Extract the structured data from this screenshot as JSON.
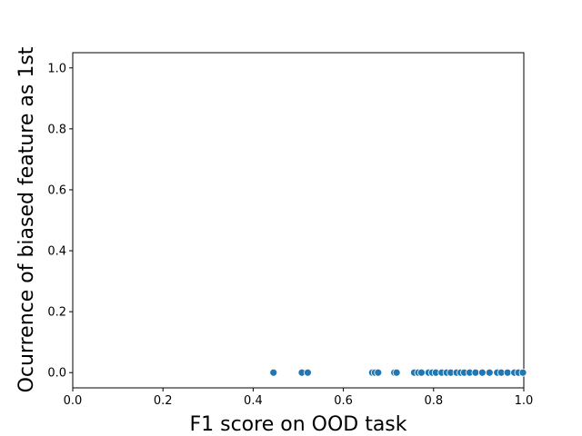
{
  "chart_data": {
    "type": "scatter",
    "xlabel": "F1 score on OOD task",
    "ylabel": "Ocurrence of biased feature as 1st",
    "xlim": [
      0.0,
      1.0
    ],
    "ylim": [
      -0.05,
      1.05
    ],
    "x_ticks": [
      {
        "value": 0.0,
        "label": "0.0"
      },
      {
        "value": 0.2,
        "label": "0.2"
      },
      {
        "value": 0.4,
        "label": "0.4"
      },
      {
        "value": 0.6,
        "label": "0.6"
      },
      {
        "value": 0.8,
        "label": "0.8"
      },
      {
        "value": 1.0,
        "label": "1.0"
      }
    ],
    "y_ticks": [
      {
        "value": 0.0,
        "label": "0.0"
      },
      {
        "value": 0.2,
        "label": "0.2"
      },
      {
        "value": 0.4,
        "label": "0.4"
      },
      {
        "value": 0.6,
        "label": "0.6"
      },
      {
        "value": 0.8,
        "label": "0.8"
      },
      {
        "value": 1.0,
        "label": "1.0"
      }
    ],
    "grid": false,
    "marker_color": "#1f77b4",
    "points": [
      {
        "x": 0.445,
        "y": 0.0
      },
      {
        "x": 0.508,
        "y": 0.0
      },
      {
        "x": 0.521,
        "y": 0.0
      },
      {
        "x": 0.664,
        "y": 0.0
      },
      {
        "x": 0.67,
        "y": 0.0
      },
      {
        "x": 0.677,
        "y": 0.0
      },
      {
        "x": 0.713,
        "y": 0.0
      },
      {
        "x": 0.718,
        "y": 0.0
      },
      {
        "x": 0.757,
        "y": 0.0
      },
      {
        "x": 0.766,
        "y": 0.0
      },
      {
        "x": 0.773,
        "y": 0.0
      },
      {
        "x": 0.789,
        "y": 0.0
      },
      {
        "x": 0.797,
        "y": 0.0
      },
      {
        "x": 0.805,
        "y": 0.0
      },
      {
        "x": 0.818,
        "y": 0.0
      },
      {
        "x": 0.829,
        "y": 0.0
      },
      {
        "x": 0.838,
        "y": 0.0
      },
      {
        "x": 0.851,
        "y": 0.0
      },
      {
        "x": 0.86,
        "y": 0.0
      },
      {
        "x": 0.868,
        "y": 0.0
      },
      {
        "x": 0.88,
        "y": 0.0
      },
      {
        "x": 0.893,
        "y": 0.0
      },
      {
        "x": 0.908,
        "y": 0.0
      },
      {
        "x": 0.924,
        "y": 0.0
      },
      {
        "x": 0.941,
        "y": 0.0
      },
      {
        "x": 0.95,
        "y": 0.0
      },
      {
        "x": 0.964,
        "y": 0.0
      },
      {
        "x": 0.979,
        "y": 0.0
      },
      {
        "x": 0.988,
        "y": 0.0
      },
      {
        "x": 0.998,
        "y": 0.0
      }
    ]
  }
}
